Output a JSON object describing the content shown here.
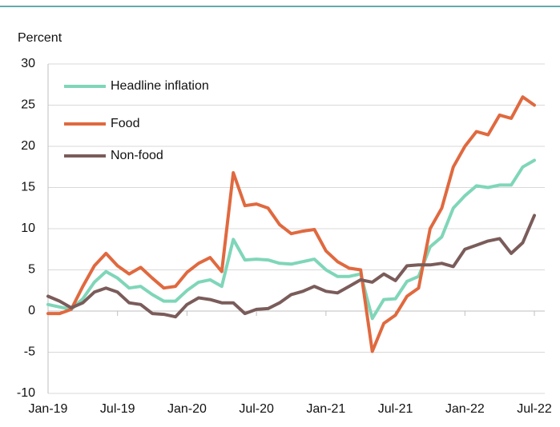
{
  "chart_data": {
    "type": "line",
    "ylabel": "Percent",
    "categories": [
      "Jan-19",
      null,
      null,
      null,
      null,
      null,
      "Jul-19",
      null,
      null,
      null,
      null,
      null,
      "Jan-20",
      null,
      null,
      null,
      null,
      null,
      "Jul-20",
      null,
      null,
      null,
      null,
      null,
      "Jan-21",
      null,
      null,
      null,
      null,
      null,
      "Jul-21",
      null,
      null,
      null,
      null,
      null,
      "Jan-22",
      null,
      null,
      null,
      null,
      null,
      "Jul-22"
    ],
    "series": [
      {
        "name": "Headline inflation",
        "color": "#7fd6b8",
        "values": [
          0.8,
          0.5,
          0.2,
          1.5,
          3.5,
          4.8,
          4.0,
          2.8,
          3.0,
          2.0,
          1.2,
          1.2,
          2.5,
          3.5,
          3.8,
          3.0,
          8.7,
          6.2,
          6.3,
          6.2,
          5.8,
          5.7,
          6.0,
          6.3,
          5.0,
          4.2,
          4.2,
          4.5,
          -0.9,
          1.4,
          1.5,
          3.6,
          4.2,
          7.8,
          9.0,
          12.5,
          14.0,
          15.2,
          15.0,
          15.3,
          15.3,
          17.5,
          18.3
        ]
      },
      {
        "name": "Food",
        "color": "#e0693f",
        "values": [
          -0.3,
          -0.3,
          0.2,
          3.0,
          5.5,
          7.0,
          5.5,
          4.5,
          5.3,
          4.0,
          2.8,
          3.0,
          4.7,
          5.8,
          6.5,
          4.8,
          16.8,
          12.8,
          13.0,
          12.5,
          10.5,
          9.4,
          9.7,
          9.9,
          7.3,
          6.0,
          5.2,
          5.0,
          -4.9,
          -1.5,
          -0.5,
          1.8,
          2.8,
          10.0,
          12.5,
          17.5,
          20.0,
          21.8,
          21.4,
          23.8,
          23.4,
          26.0,
          25.0
        ]
      },
      {
        "name": "Non-food",
        "color": "#7a5c5a",
        "values": [
          1.8,
          1.2,
          0.4,
          1.0,
          2.3,
          2.8,
          2.3,
          1.0,
          0.8,
          -0.3,
          -0.4,
          -0.7,
          0.8,
          1.6,
          1.4,
          1.0,
          1.0,
          -0.3,
          0.2,
          0.3,
          1.0,
          2.0,
          2.4,
          3.0,
          2.4,
          2.2,
          3.0,
          3.8,
          3.5,
          4.5,
          3.7,
          5.5,
          5.6,
          5.6,
          5.8,
          5.4,
          7.5,
          8.0,
          8.5,
          8.8,
          7.0,
          8.3,
          11.6
        ]
      }
    ],
    "ylim": [
      -10,
      30
    ],
    "yticks": [
      -10,
      -5,
      0,
      5,
      10,
      15,
      20,
      25,
      30
    ],
    "grid": true,
    "legend": "upper left"
  }
}
